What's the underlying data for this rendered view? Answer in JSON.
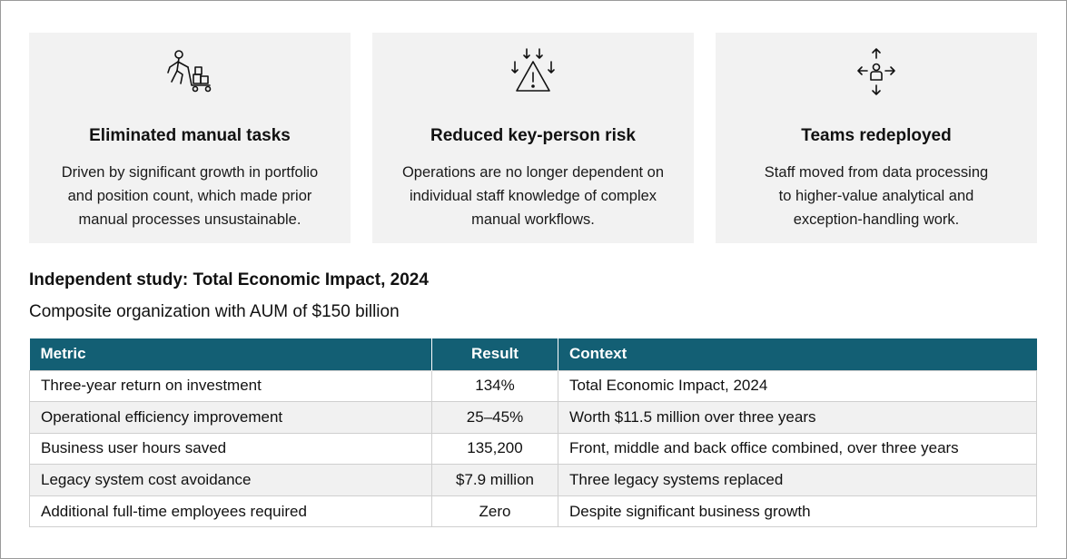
{
  "cards": [
    {
      "icon": "worker-pushing-cart-icon",
      "title": "Eliminated manual tasks",
      "lines": [
        "Driven by significant growth in portfolio",
        "and position count, which made prior",
        "manual processes unsustainable."
      ]
    },
    {
      "icon": "warning-arrows-icon",
      "title": "Reduced key-person risk",
      "lines": [
        "Operations are no longer dependent on",
        "individual staff knowledge of complex",
        "manual workflows."
      ]
    },
    {
      "icon": "person-redeploy-arrows-icon",
      "title": "Teams redeployed",
      "lines": [
        "Staff moved from data processing",
        "to higher-value analytical and",
        "exception-handling work."
      ]
    }
  ],
  "study": {
    "title": "Independent study: Total Economic Impact, 2024",
    "subtitle": "Composite organization with AUM of $150 billion"
  },
  "table": {
    "headers": [
      "Metric",
      "Result",
      "Context"
    ],
    "rows": [
      [
        "Three-year return on investment",
        "134%",
        "Total Economic Impact, 2024"
      ],
      [
        "Operational efficiency improvement",
        "25–45%",
        "Worth $11.5 million over three years"
      ],
      [
        "Business user hours saved",
        "135,200",
        "Front, middle and back office combined, over three years"
      ],
      [
        "Legacy system cost avoidance",
        "$7.9 million",
        "Three legacy systems replaced"
      ],
      [
        "Additional full-time employees required",
        "Zero",
        "Despite significant business growth"
      ]
    ]
  },
  "colors": {
    "header_bg": "#135f74",
    "card_bg": "#f2f2f2",
    "stripe_bg": "#f1f1f1"
  }
}
